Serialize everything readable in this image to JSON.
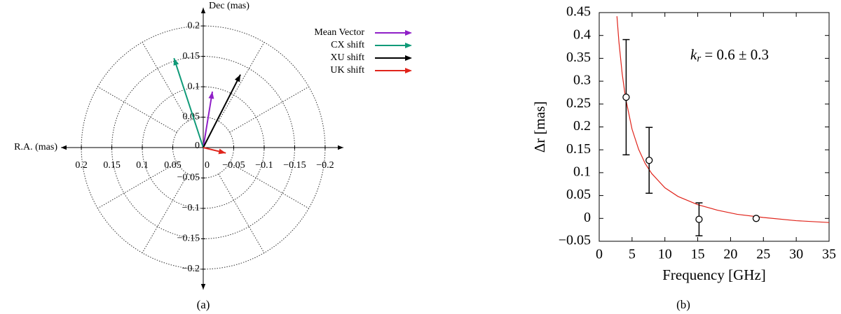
{
  "chart_data": [
    {
      "type": "vector",
      "xlabel": "R.A. (mas)",
      "ylabel": "Dec (mas)",
      "caption": "(a)",
      "xlim": [
        0.23,
        -0.23
      ],
      "ylim": [
        -0.23,
        0.23
      ],
      "xticks": [
        0.2,
        0.15,
        0.1,
        0.05,
        0,
        {
          "value": -0.05,
          "label": "−0.05"
        },
        {
          "value": -0.1,
          "label": "−0.1"
        },
        {
          "value": -0.15,
          "label": "−0.15"
        },
        {
          "value": -0.2,
          "label": "−0.2"
        }
      ],
      "yticks": [
        0.2,
        0.15,
        0.1,
        0.05,
        0,
        {
          "value": -0.05,
          "label": "−0.05"
        },
        {
          "value": -0.1,
          "label": "−0.1"
        },
        {
          "value": -0.15,
          "label": "−0.15"
        },
        {
          "value": -0.2,
          "label": "−0.2"
        }
      ],
      "polar_grid": true,
      "legend": "upper right",
      "series": [
        {
          "name": "Mean Vector",
          "color": "#8f1fc7",
          "x": [
            -0.015
          ],
          "values": [
            0.092
          ]
        },
        {
          "name": "CX shift",
          "color": "#109a78",
          "x": [
            0.048
          ],
          "values": [
            0.147
          ]
        },
        {
          "name": "XU shift",
          "color": "#000000",
          "x": [
            -0.061
          ],
          "values": [
            0.12
          ]
        },
        {
          "name": "UK shift",
          "color": "#e0241b",
          "x": [
            -0.037
          ],
          "values": [
            -0.009
          ]
        }
      ]
    },
    {
      "type": "scatter",
      "xlabel": "Frequency [GHz]",
      "ylabel": "Δr [mas]",
      "caption": "(b)",
      "annotation": {
        "symbol": "k",
        "subscript": "r",
        "text": " = 0.6 ± 0.3"
      },
      "xlim": [
        0,
        35
      ],
      "ylim": [
        -0.05,
        0.45
      ],
      "xticks": [
        0,
        5,
        10,
        15,
        20,
        25,
        30,
        35
      ],
      "yticks": [
        {
          "value": -0.05,
          "label": "−0.05"
        },
        0,
        0.05,
        0.1,
        0.15,
        0.2,
        0.25,
        0.3,
        0.35,
        0.4,
        0.45
      ],
      "grid": false,
      "series": [
        {
          "color": "#e0241b",
          "line": true,
          "x": [
            2.7,
            3,
            3.5,
            4,
            5,
            6,
            7,
            8,
            10,
            12,
            15,
            18,
            21,
            25,
            30,
            35
          ],
          "values": [
            0.442,
            0.386,
            0.316,
            0.264,
            0.195,
            0.151,
            0.12,
            0.098,
            0.067,
            0.048,
            0.03,
            0.018,
            0.009,
            0.002,
            -0.005,
            -0.009
          ]
        },
        {
          "color": "#000000",
          "marker": "open-circle",
          "x": [
            4.1,
            7.6,
            15.2,
            23.9
          ],
          "values": [
            0.265,
            0.127,
            -0.002,
            0.0
          ],
          "errors": [
            0.126,
            0.072,
            0.036,
            null
          ]
        }
      ]
    }
  ]
}
